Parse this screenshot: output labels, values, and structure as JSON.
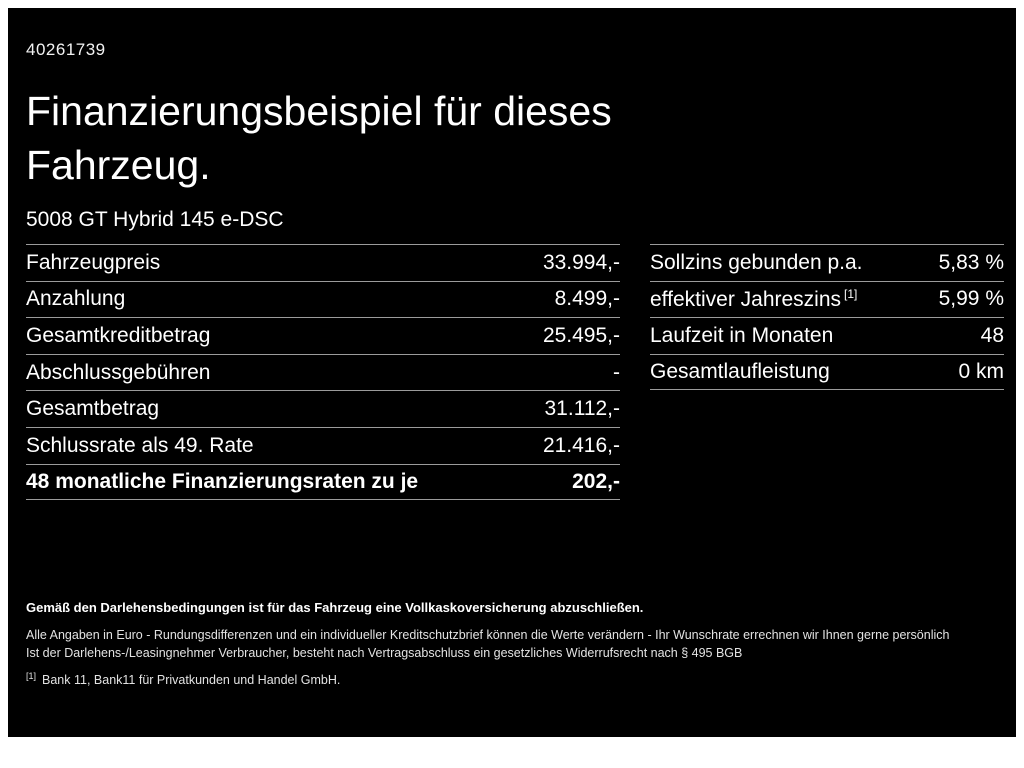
{
  "page": {
    "doc_number": "40261739",
    "title_line1": "Finanzierungsbeispiel für dieses",
    "title_line2": "Fahrzeug.",
    "vehicle_name": "5008 GT Hybrid 145 e-DSC"
  },
  "colors": {
    "background": "#000000",
    "text": "#ffffff",
    "divider": "#9b9b9b"
  },
  "left_table": {
    "rows": [
      {
        "label": "Fahrzeugpreis",
        "value": "33.994,-"
      },
      {
        "label": "Anzahlung",
        "value": "8.499,-"
      },
      {
        "label": "Gesamtkreditbetrag",
        "value": "25.495,-"
      },
      {
        "label": "Abschlussgebühren",
        "value": "-"
      },
      {
        "label": "Gesamtbetrag",
        "value": "31.112,-"
      },
      {
        "label": "Schlussrate als 49. Rate",
        "value": "21.416,-"
      },
      {
        "label": "48 monatliche Finanzierungsraten zu je",
        "value": "202,-"
      }
    ]
  },
  "right_table": {
    "rows": [
      {
        "label": "Sollzins gebunden p.a.",
        "note": "",
        "value": "5,83 %"
      },
      {
        "label": "effektiver Jahreszins",
        "note": "[1]",
        "value": "5,99 %"
      },
      {
        "label": "Laufzeit in Monaten",
        "note": "",
        "value": "48"
      },
      {
        "label": "Gesamtlaufleistung",
        "note": "",
        "value": "0 km"
      }
    ]
  },
  "footer": {
    "line_bold": "Gemäß den Darlehensbedingungen ist für das Fahrzeug eine Vollkaskoversicherung abzuschließen.",
    "line2": "Alle Angaben in Euro - Rundungsdifferenzen und ein individueller Kreditschutzbrief können die Werte verändern - Ihr Wunschrate errechnen wir Ihnen gerne persönlich",
    "line3": "Ist der Darlehens-/Leasingnehmer Verbraucher, besteht nach Vertragsabschluss ein gesetzliches Widerrufsrecht nach § 495 BGB",
    "footnote_ref": "[1]",
    "footnote_text": "Bank 11, Bank11 für Privatkunden und Handel GmbH."
  }
}
